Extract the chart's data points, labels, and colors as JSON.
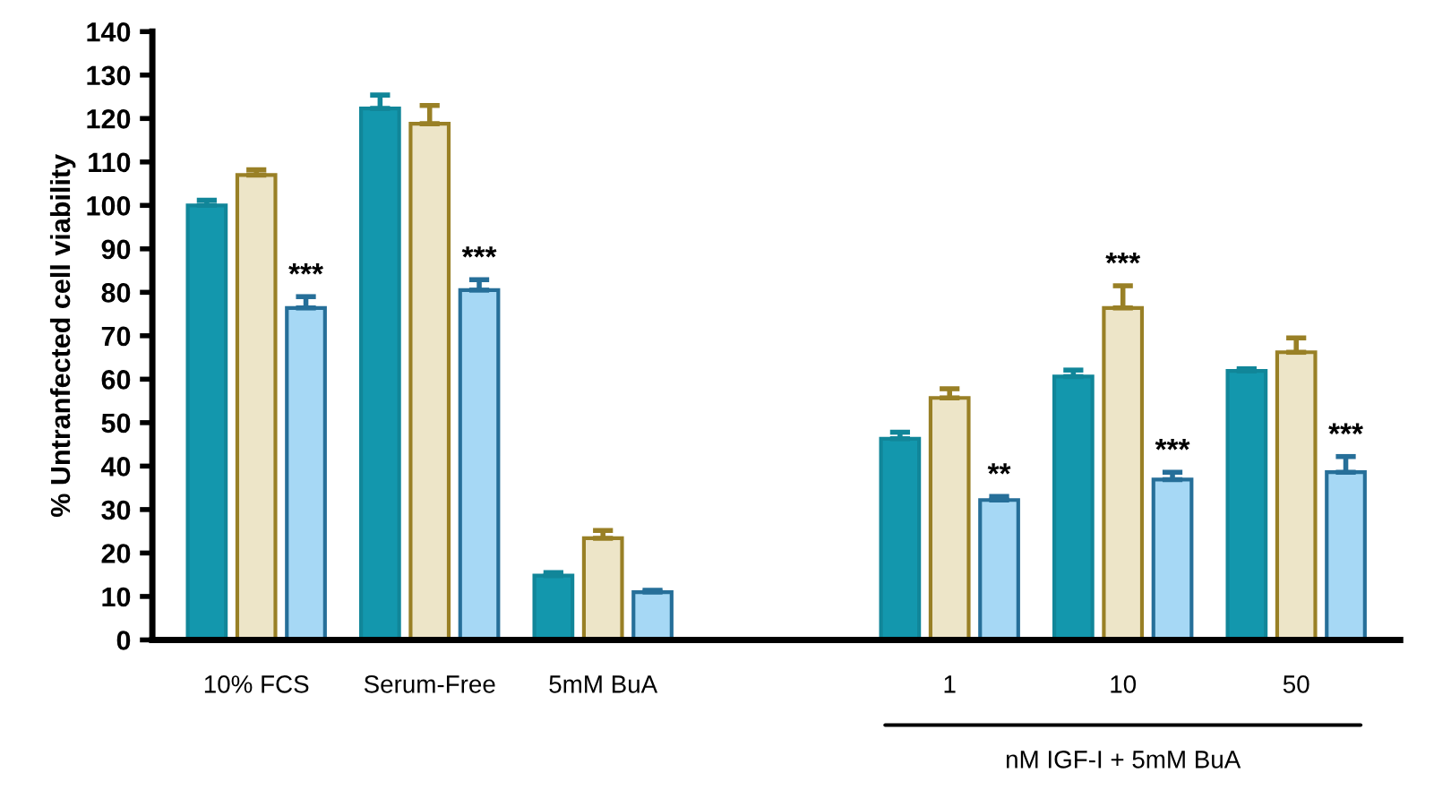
{
  "chart_data": {
    "type": "bar",
    "ylabel": "% Untranfected cell viability",
    "categories": [
      "10% FCS",
      "Serum-Free",
      "5mM BuA",
      null,
      "1",
      "10",
      "50"
    ],
    "series": [
      {
        "color": "#1397ad",
        "values": [
          100,
          122.3,
          14.8,
          null,
          46.3,
          60.6,
          61.9
        ],
        "errors": [
          [
            100,
            101.2
          ],
          [
            122.3,
            125.4
          ],
          [
            14.8,
            15.5
          ],
          null,
          [
            46.3,
            47.8
          ],
          [
            60.6,
            62.1
          ],
          [
            61.9,
            62.4
          ]
        ]
      },
      {
        "color": "#ede5c8",
        "values": [
          107,
          118.8,
          23.4,
          null,
          55.7,
          76.4,
          66.2
        ],
        "errors": [
          [
            107,
            108.2
          ],
          [
            118.8,
            123
          ],
          [
            23.4,
            25.2
          ],
          null,
          [
            55.7,
            57.8
          ],
          [
            76.4,
            81.5
          ],
          [
            66.2,
            69.5
          ]
        ],
        "value_labels": [
          null,
          null,
          null,
          null,
          null,
          "***",
          null
        ]
      },
      {
        "color": "#a6d8f5",
        "values": [
          76.4,
          80.5,
          11,
          null,
          32.2,
          36.9,
          38.6
        ],
        "errors": [
          [
            76.4,
            79
          ],
          [
            80.5,
            82.9
          ],
          [
            11,
            11.4
          ],
          null,
          [
            32.2,
            33
          ],
          [
            36.9,
            38.6
          ],
          [
            38.6,
            42.2
          ]
        ],
        "value_labels": [
          "***",
          "***",
          null,
          null,
          "**",
          "***",
          "***"
        ]
      }
    ],
    "ylim": [
      0,
      140
    ],
    "yticks": [
      0,
      10,
      20,
      30,
      40,
      50,
      60,
      70,
      80,
      90,
      100,
      110,
      120,
      130,
      140
    ],
    "grid": false,
    "legend": false,
    "annotations": [
      "nM IGF-I + 5mM BuA"
    ]
  }
}
